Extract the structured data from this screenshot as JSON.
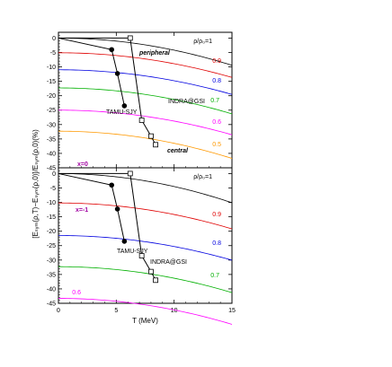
{
  "chart_data": [
    {
      "type": "line",
      "panel_label": "x=0",
      "panel_label_color": "#a000a0",
      "xlim": [
        0,
        15
      ],
      "ylim": [
        -45,
        2
      ],
      "x_ticks": [
        0,
        5,
        10,
        15
      ],
      "y_ticks": [
        0,
        -5,
        -10,
        -15,
        -20,
        -25,
        -30,
        -35,
        -40,
        -45
      ],
      "x_tick_labels": [],
      "y_tick_labels": [
        "0",
        "-5",
        "-10",
        "-15",
        "-20",
        "-25",
        "-30",
        "-35",
        "-40",
        "-45"
      ],
      "density_curves": [
        {
          "label": "ρ/ρ₀=1",
          "color": "#000000",
          "y0": 0.0,
          "k": 0.042
        },
        {
          "label": "0.9",
          "color": "#e00000",
          "y0": -5.1,
          "k": 0.038
        },
        {
          "label": "0.8",
          "color": "#0000e0",
          "y0": -11.0,
          "k": 0.038
        },
        {
          "label": "0.7",
          "color": "#00b000",
          "y0": -17.3,
          "k": 0.04
        },
        {
          "label": "0.6",
          "color": "#ff00ff",
          "y0": -25.0,
          "k": 0.038
        },
        {
          "label": "0.5",
          "color": "#ff9900",
          "y0": -32.3,
          "k": 0.042
        }
      ],
      "series": [
        {
          "name": "TAMU-SJY",
          "marker": "filled-circle",
          "x": [
            0,
            4.6,
            5.1,
            5.7
          ],
          "y": [
            0,
            -4,
            -12.3,
            -23.5
          ]
        },
        {
          "name": "INDRA@GSI",
          "marker": "open-square",
          "x": [
            0,
            6.2,
            7.2,
            8.0,
            8.4
          ],
          "y": [
            0,
            0,
            -28.5,
            -34,
            -37
          ]
        }
      ],
      "annotations": [
        "peripheral",
        "central"
      ]
    },
    {
      "type": "line",
      "panel_label": "x=-1",
      "panel_label_color": "#a000a0",
      "xlim": [
        0,
        15
      ],
      "ylim": [
        -45,
        2
      ],
      "x_ticks": [
        0,
        5,
        10,
        15
      ],
      "y_ticks": [
        0,
        -5,
        -10,
        -15,
        -20,
        -25,
        -30,
        -35,
        -40,
        -45
      ],
      "x_tick_labels": [
        "0",
        "5",
        "10",
        "15"
      ],
      "y_tick_labels": [
        "0",
        "-5",
        "-10",
        "-15",
        "-20",
        "-25",
        "-30",
        "-35",
        "-40",
        "-45"
      ],
      "xlabel": "T (MeV)",
      "density_curves": [
        {
          "label": "ρ/ρ₀=1",
          "color": "#000000",
          "y0": 0.0,
          "k": 0.045
        },
        {
          "label": "0.9",
          "color": "#e00000",
          "y0": -10.2,
          "k": 0.04
        },
        {
          "label": "0.8",
          "color": "#0000e0",
          "y0": -21.5,
          "k": 0.038
        },
        {
          "label": "0.7",
          "color": "#00b000",
          "y0": -32.3,
          "k": 0.04
        },
        {
          "label": "0.6",
          "color": "#ff00ff",
          "y0": -43.3,
          "k": 0.04
        }
      ],
      "series": [
        {
          "name": "TAMU-SJY",
          "marker": "filled-circle",
          "x": [
            0,
            4.6,
            5.1,
            5.7
          ],
          "y": [
            0,
            -4,
            -12.3,
            -23.5
          ]
        },
        {
          "name": "INDRA@GSI",
          "marker": "open-square",
          "x": [
            0,
            6.2,
            7.2,
            8.0,
            8.4
          ],
          "y": [
            0,
            0,
            -28.5,
            -34,
            -37
          ]
        }
      ]
    }
  ],
  "ylabel": "[Eₛᵧₘ(ρ,T)−Eₛᵧₘ(ρ,0)]/Eₛᵧₘ(ρ,0)(%)"
}
